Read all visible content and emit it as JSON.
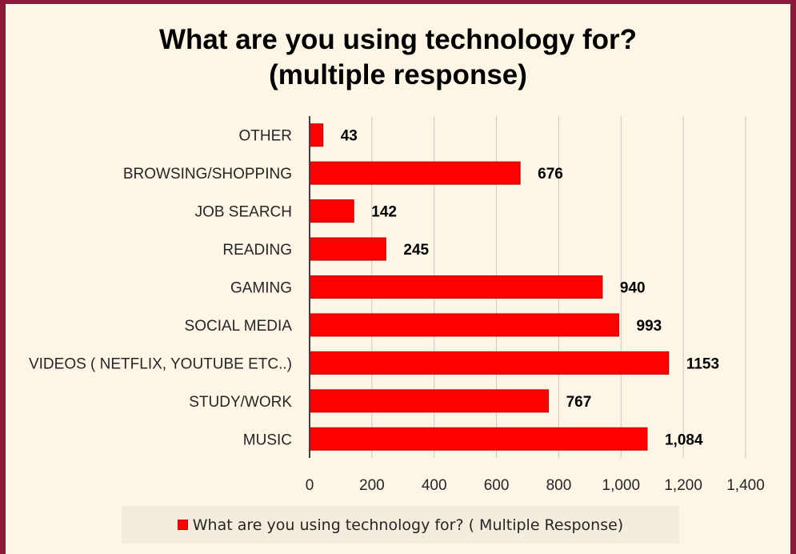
{
  "colors": {
    "bar": "#ff0000",
    "bar_edge": "#c00000",
    "background": "#fdf6e6",
    "border": "#8b1a3a"
  },
  "chart_data": {
    "type": "bar",
    "orientation": "horizontal",
    "title_lines": [
      "What are you using technology for?",
      "(multiple response)"
    ],
    "categories": [
      "MUSIC",
      "STUDY/WORK",
      "VIDEOS ( NETFLIX, YOUTUBE ETC..)",
      "SOCIAL MEDIA",
      "GAMING",
      "READING",
      "JOB SEARCH",
      "BROWSING/SHOPPING",
      "OTHER"
    ],
    "series": [
      {
        "name": "What are you using technology for? ( Multiple Response)",
        "values": [
          1084,
          767,
          1153,
          993,
          940,
          245,
          142,
          676,
          43
        ],
        "labels": [
          "1,084",
          "767",
          "1153",
          "993",
          "940",
          "245",
          "142",
          "676",
          "43"
        ]
      }
    ],
    "xlim": [
      0,
      1400
    ],
    "xticks": [
      0,
      200,
      400,
      600,
      800,
      1000,
      1200,
      1400
    ],
    "xtick_labels": [
      "0",
      "200",
      "400",
      "600",
      "800",
      "1,000",
      "1,200",
      "1,400"
    ],
    "grid": "vertical",
    "legend_position": "bottom"
  }
}
